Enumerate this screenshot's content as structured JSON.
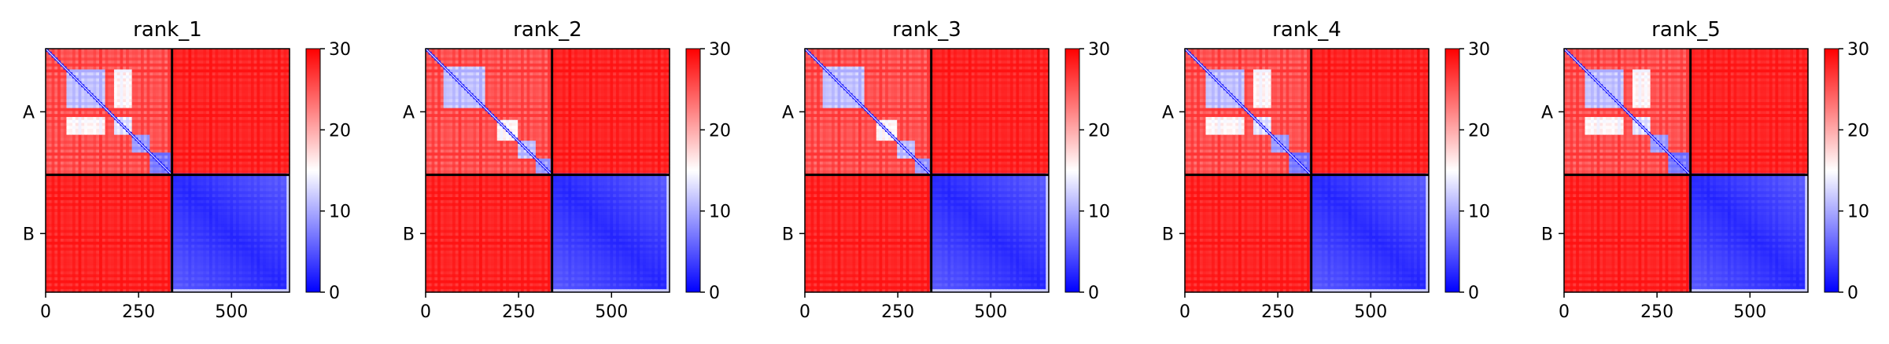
{
  "chart_data": [
    {
      "type": "heatmap",
      "title": "rank_1",
      "matrix_size": 656,
      "chain_boundary": 340,
      "x_ticks": [
        0,
        250,
        500
      ],
      "y_tick_labels": [
        "A",
        "B"
      ],
      "color_range": [
        0,
        30
      ],
      "colorbar_ticks": [
        0,
        10,
        20,
        30
      ],
      "colormap": [
        "#0000ff",
        "#ffffff",
        "#ff0000"
      ],
      "intra_blocks": [
        [
          55,
          160,
          10
        ],
        [
          185,
          235,
          12
        ],
        [
          235,
          280,
          8
        ],
        [
          280,
          335,
          6
        ]
      ],
      "off_blocks": [
        [
          55,
          160,
          185,
          235,
          14
        ]
      ],
      "inter_chain_value": 29
    },
    {
      "type": "heatmap",
      "title": "rank_2",
      "matrix_size": 656,
      "chain_boundary": 340,
      "x_ticks": [
        0,
        250,
        500
      ],
      "y_tick_labels": [
        "A",
        "B"
      ],
      "color_range": [
        0,
        30
      ],
      "colorbar_ticks": [
        0,
        10,
        20,
        30
      ],
      "colormap": [
        "#0000ff",
        "#ffffff",
        "#ff0000"
      ],
      "intra_blocks": [
        [
          50,
          160,
          10
        ],
        [
          195,
          245,
          14
        ],
        [
          245,
          295,
          10
        ],
        [
          295,
          335,
          8
        ]
      ],
      "off_blocks": [],
      "inter_chain_value": 29
    },
    {
      "type": "heatmap",
      "title": "rank_3",
      "matrix_size": 656,
      "chain_boundary": 340,
      "x_ticks": [
        0,
        250,
        500
      ],
      "y_tick_labels": [
        "A",
        "B"
      ],
      "color_range": [
        0,
        30
      ],
      "colorbar_ticks": [
        0,
        10,
        20,
        30
      ],
      "colormap": [
        "#0000ff",
        "#ffffff",
        "#ff0000"
      ],
      "intra_blocks": [
        [
          45,
          160,
          10
        ],
        [
          195,
          245,
          14
        ],
        [
          245,
          295,
          10
        ],
        [
          295,
          335,
          8
        ]
      ],
      "off_blocks": [],
      "inter_chain_value": 29
    },
    {
      "type": "heatmap",
      "title": "rank_4",
      "matrix_size": 656,
      "chain_boundary": 340,
      "x_ticks": [
        0,
        250,
        500
      ],
      "y_tick_labels": [
        "A",
        "B"
      ],
      "color_range": [
        0,
        30
      ],
      "colorbar_ticks": [
        0,
        10,
        20,
        30
      ],
      "colormap": [
        "#0000ff",
        "#ffffff",
        "#ff0000"
      ],
      "intra_blocks": [
        [
          55,
          160,
          10
        ],
        [
          185,
          235,
          12
        ],
        [
          235,
          280,
          8
        ],
        [
          280,
          335,
          6
        ]
      ],
      "off_blocks": [
        [
          55,
          160,
          185,
          235,
          14
        ]
      ],
      "inter_chain_value": 29
    },
    {
      "type": "heatmap",
      "title": "rank_5",
      "matrix_size": 656,
      "chain_boundary": 340,
      "x_ticks": [
        0,
        250,
        500
      ],
      "y_tick_labels": [
        "A",
        "B"
      ],
      "color_range": [
        0,
        30
      ],
      "colorbar_ticks": [
        0,
        10,
        20,
        30
      ],
      "colormap": [
        "#0000ff",
        "#ffffff",
        "#ff0000"
      ],
      "intra_blocks": [
        [
          55,
          160,
          10
        ],
        [
          185,
          235,
          12
        ],
        [
          235,
          280,
          8
        ],
        [
          280,
          335,
          6
        ]
      ],
      "off_blocks": [
        [
          55,
          160,
          185,
          235,
          14
        ]
      ],
      "inter_chain_value": 29
    }
  ]
}
